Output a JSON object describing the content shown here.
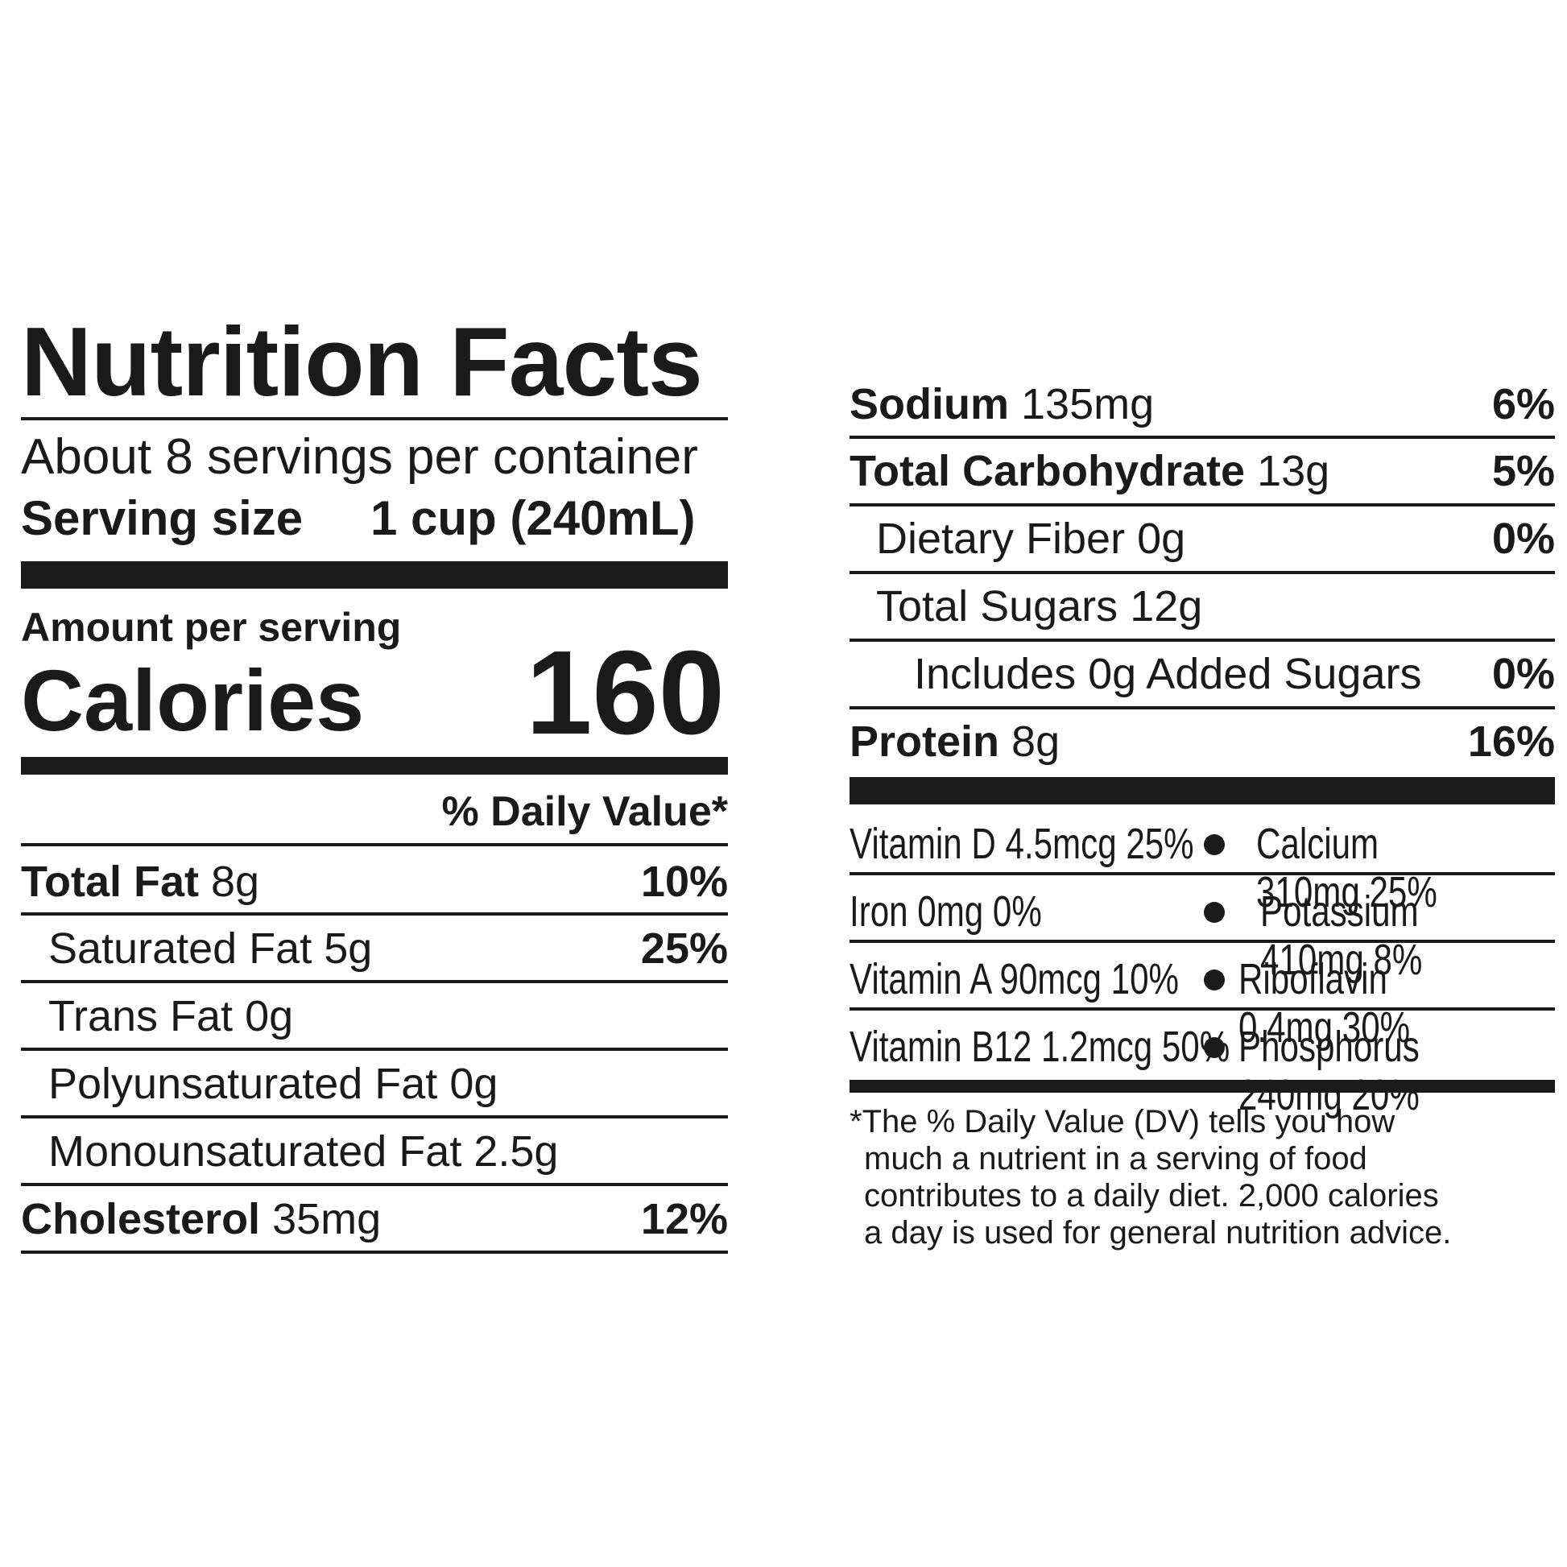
{
  "left": {
    "title": "Nutrition Facts",
    "servings_per_container": "About 8 servings per container",
    "serving_size_label": "Serving size",
    "serving_size_value": "1 cup (240mL)",
    "amount_per_serving": "Amount per serving",
    "calories_label": "Calories",
    "calories_value": "160",
    "daily_value_header": "% Daily Value*",
    "rows": [
      {
        "name": "Total Fat",
        "amount": "8g",
        "dv": "10%"
      },
      {
        "name": "Saturated Fat",
        "amount": "5g",
        "dv": "25%"
      },
      {
        "name": "Trans Fat",
        "amount": "0g",
        "dv": ""
      },
      {
        "name": "Polyunsaturated Fat",
        "amount": "0g",
        "dv": ""
      },
      {
        "name": "Monounsaturated Fat",
        "amount": "2.5g",
        "dv": ""
      },
      {
        "name": "Cholesterol",
        "amount": "35mg",
        "dv": "12%"
      }
    ]
  },
  "right": {
    "rows": [
      {
        "name": "Sodium",
        "amount": "135mg",
        "dv": "6%"
      },
      {
        "name": "Total Carbohydrate",
        "amount": "13g",
        "dv": "5%"
      },
      {
        "name": "Dietary Fiber",
        "amount": "0g",
        "dv": "0%"
      },
      {
        "name": "Total Sugars",
        "amount": "12g",
        "dv": ""
      },
      {
        "name": "Includes 0g Added Sugars",
        "amount": "",
        "dv": "0%"
      },
      {
        "name": "Protein",
        "amount": "8g",
        "dv": "16%"
      }
    ],
    "vitamins": [
      {
        "left": "Vitamin D 4.5mcg 25%",
        "right": "Calcium 310mg 25%"
      },
      {
        "left": "Iron 0mg 0%",
        "right": "Potassium 410mg 8%"
      },
      {
        "left": "Vitamin A 90mcg 10%",
        "right": "Riboflavin 0.4mg 30%"
      },
      {
        "left": "Vitamin B12 1.2mcg 50%",
        "right": "Phosphorus 240mg 20%"
      }
    ],
    "footnote_lines": [
      "*The % Daily Value (DV) tells you how",
      "much a nutrient in a serving of food",
      "contributes to a daily diet. 2,000 calories",
      "a day is used for general nutrition advice."
    ]
  }
}
